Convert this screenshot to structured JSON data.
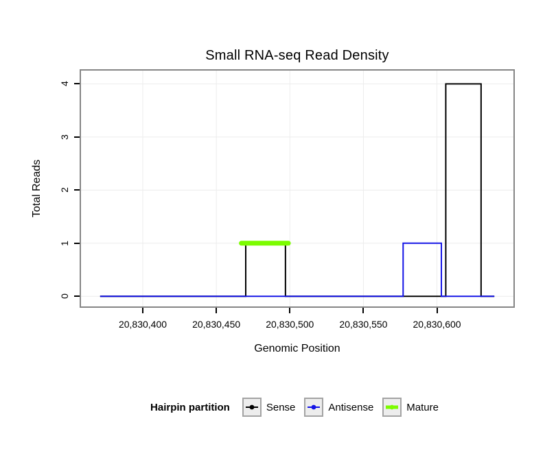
{
  "figure": {
    "background": "#ffffff"
  },
  "chart_data": {
    "type": "line",
    "title": "Small RNA-seq Read Density",
    "xlabel": "Genomic Position",
    "ylabel": "Total Reads",
    "xlim": [
      20830358,
      20830652
    ],
    "ylim": [
      -0.19,
      4.25
    ],
    "grid": true,
    "panel": {
      "border_color": "#858585",
      "grid_color": "#ececec",
      "background": "#ffffff"
    },
    "x_ticks": [
      {
        "value": 20830400,
        "label": "20,830,400"
      },
      {
        "value": 20830450,
        "label": "20,830,450"
      },
      {
        "value": 20830500,
        "label": "20,830,500"
      },
      {
        "value": 20830550,
        "label": "20,830,550"
      },
      {
        "value": 20830600,
        "label": "20,830,600"
      }
    ],
    "y_ticks": [
      {
        "value": 0,
        "label": "0"
      },
      {
        "value": 1,
        "label": "1"
      },
      {
        "value": 2,
        "label": "2"
      },
      {
        "value": 3,
        "label": "3"
      },
      {
        "value": 4,
        "label": "4"
      }
    ],
    "series": [
      {
        "name": "Sense",
        "color": "#000000",
        "linewidth": 2,
        "linecap": "butt",
        "points": [
          [
            20830371,
            0
          ],
          [
            20830470,
            0
          ],
          [
            20830470,
            1
          ],
          [
            20830497,
            1
          ],
          [
            20830497,
            0
          ],
          [
            20830606,
            0
          ],
          [
            20830606,
            4
          ],
          [
            20830630,
            4
          ],
          [
            20830630,
            0
          ],
          [
            20830639,
            0
          ]
        ]
      },
      {
        "name": "Antisense",
        "color": "#1414e6",
        "linewidth": 2,
        "linecap": "butt",
        "points": [
          [
            20830371,
            0
          ],
          [
            20830577,
            0
          ],
          [
            20830577,
            1
          ],
          [
            20830603,
            1
          ],
          [
            20830603,
            0
          ],
          [
            20830639,
            0
          ]
        ]
      },
      {
        "name": "Mature",
        "color": "#7cfc00",
        "linewidth": 7,
        "linecap": "round",
        "points": [
          [
            20830467,
            1
          ],
          [
            20830499,
            1
          ]
        ]
      }
    ],
    "legend": {
      "title": "Hairpin partition",
      "position": "bottom",
      "items": [
        {
          "label": "Sense",
          "color": "#000000",
          "linewidth": 2
        },
        {
          "label": "Antisense",
          "color": "#1414e6",
          "linewidth": 2
        },
        {
          "label": "Mature",
          "color": "#7cfc00",
          "linewidth": 5
        }
      ]
    }
  }
}
